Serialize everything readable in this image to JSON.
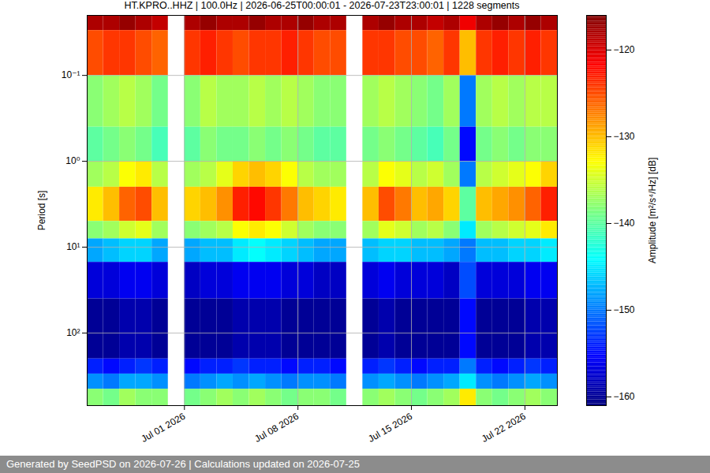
{
  "chart_data": {
    "type": "heatmap",
    "title": "HT.KPRO..HHZ | 100.0Hz | 2026-06-25T00:00:01 - 2026-07-23T23:00:01 | 1228 segments",
    "y_label": "Period [s]",
    "log": "y",
    "grid": true,
    "footer": "Generated by SeedPSD on 2026-07-26 | Calculations updated on 2026-07-25",
    "xlim": [
      "2026-06-25",
      "2026-07-24"
    ],
    "xticks": [
      {
        "value": "2026-07-01",
        "label": "Jul 01 2026"
      },
      {
        "value": "2026-07-08",
        "label": "Jul 08 2026"
      },
      {
        "value": "2026-07-15",
        "label": "Jul 15 2026"
      },
      {
        "value": "2026-07-22",
        "label": "Jul 22 2026"
      }
    ],
    "ylim": [
      0.02,
      700
    ],
    "yticks": [
      {
        "value": 0.1,
        "label": "10⁻¹"
      },
      {
        "value": 1,
        "label": "10⁰"
      },
      {
        "value": 10,
        "label": "10¹"
      },
      {
        "value": 100,
        "label": "10²"
      }
    ],
    "time_edges": [
      "2026-06-25",
      "2026-06-26",
      "2026-06-27",
      "2026-06-28",
      "2026-06-29",
      "2026-06-30",
      "2026-07-01",
      "2026-07-02",
      "2026-07-03",
      "2026-07-04",
      "2026-07-05",
      "2026-07-06",
      "2026-07-07",
      "2026-07-08",
      "2026-07-09",
      "2026-07-10",
      "2026-07-11",
      "2026-07-12",
      "2026-07-13",
      "2026-07-14",
      "2026-07-15",
      "2026-07-16",
      "2026-07-17",
      "2026-07-18",
      "2026-07-19",
      "2026-07-20",
      "2026-07-21",
      "2026-07-22",
      "2026-07-23",
      "2026-07-24"
    ],
    "period_edges": [
      0.02,
      0.03,
      0.1,
      0.4,
      1,
      2,
      5,
      8,
      15,
      40,
      200,
      300,
      450,
      700
    ],
    "cells": [
      [
        -118,
        -118,
        -117,
        -118,
        -119,
        null,
        -118,
        -117,
        -118,
        -118,
        -117,
        -118,
        -118,
        -117,
        -118,
        -118,
        null,
        -118,
        -117,
        -118,
        -118,
        -119,
        -118,
        -121,
        -118,
        -117,
        -118,
        -117,
        -118
      ],
      [
        -125,
        -124,
        -124,
        -125,
        -126,
        null,
        -124,
        -123,
        -124,
        -125,
        -124,
        -124,
        -123,
        -124,
        -125,
        -125,
        null,
        -124,
        -124,
        -125,
        -125,
        -126,
        -124,
        -130,
        -124,
        -123,
        -124,
        -123,
        -124
      ],
      [
        -138,
        -137,
        -136,
        -137,
        -139,
        null,
        -138,
        -136,
        -137,
        -137,
        -136,
        -137,
        -136,
        -137,
        -138,
        -138,
        null,
        -137,
        -136,
        -137,
        -138,
        -139,
        -137,
        -150,
        -137,
        -136,
        -137,
        -136,
        -136
      ],
      [
        -140,
        -139,
        -138,
        -139,
        -141,
        null,
        -140,
        -138,
        -139,
        -139,
        -138,
        -139,
        -138,
        -139,
        -140,
        -140,
        null,
        -139,
        -138,
        -139,
        -140,
        -141,
        -139,
        -155,
        -139,
        -138,
        -139,
        -138,
        -138
      ],
      [
        -137,
        -136,
        -133,
        -132,
        -136,
        null,
        -137,
        -136,
        -134,
        -131,
        -130,
        -131,
        -133,
        -136,
        -137,
        -137,
        null,
        -136,
        -133,
        -134,
        -136,
        -135,
        -137,
        -150,
        -136,
        -135,
        -134,
        -133,
        -131
      ],
      [
        -132,
        -130,
        -126,
        -125,
        -130,
        null,
        -131,
        -130,
        -128,
        -123,
        -122,
        -124,
        -127,
        -130,
        -131,
        -132,
        null,
        -130,
        -125,
        -127,
        -130,
        -129,
        -131,
        -140,
        -130,
        -129,
        -128,
        -126,
        -123
      ],
      [
        -138,
        -137,
        -135,
        -134,
        -137,
        null,
        -138,
        -137,
        -136,
        -133,
        -132,
        -133,
        -135,
        -137,
        -138,
        -138,
        null,
        -137,
        -134,
        -135,
        -137,
        -136,
        -138,
        -145,
        -137,
        -136,
        -135,
        -134,
        -132
      ],
      [
        -148,
        -147,
        -146,
        -146,
        -148,
        null,
        -148,
        -147,
        -147,
        -145,
        -144,
        -145,
        -146,
        -147,
        -148,
        -148,
        null,
        -147,
        -146,
        -146,
        -147,
        -147,
        -148,
        -150,
        -147,
        -147,
        -146,
        -146,
        -145
      ],
      [
        -157,
        -157,
        -156,
        -156,
        -157,
        null,
        -158,
        -157,
        -157,
        -156,
        -156,
        -156,
        -157,
        -157,
        -158,
        -158,
        null,
        -157,
        -156,
        -157,
        -157,
        -157,
        -158,
        -152,
        -157,
        -157,
        -157,
        -156,
        -156
      ],
      [
        -160,
        -160,
        -159,
        -159,
        -160,
        null,
        -160,
        -160,
        -160,
        -159,
        -159,
        -159,
        -160,
        -160,
        -160,
        -160,
        null,
        -160,
        -159,
        -160,
        -160,
        -160,
        -160,
        -155,
        -160,
        -160,
        -160,
        -159,
        -159
      ],
      [
        -154,
        -155,
        -154,
        -153,
        -154,
        null,
        -155,
        -154,
        -154,
        -153,
        -154,
        -154,
        -155,
        -154,
        -154,
        -155,
        null,
        -154,
        -153,
        -154,
        -155,
        -154,
        -154,
        -150,
        -154,
        -155,
        -154,
        -153,
        -154
      ],
      [
        -149,
        -150,
        -148,
        -148,
        -149,
        null,
        -150,
        -149,
        -148,
        -149,
        -148,
        -149,
        -150,
        -149,
        -149,
        -150,
        null,
        -149,
        -148,
        -149,
        -150,
        -149,
        -148,
        -145,
        -149,
        -150,
        -149,
        -148,
        -149
      ],
      [
        -138,
        -139,
        -137,
        -138,
        -138,
        null,
        -139,
        -138,
        -137,
        -138,
        -137,
        -138,
        -139,
        -138,
        -138,
        -139,
        null,
        -138,
        -137,
        -138,
        -139,
        -138,
        -137,
        -132,
        -138,
        -139,
        -138,
        -137,
        -138
      ]
    ],
    "colorbar": {
      "label": "Amplitude [m²/s⁴/Hz] [dB]",
      "range": [
        -161,
        -116
      ],
      "ticks": [
        -160,
        -150,
        -140,
        -130,
        -120
      ]
    }
  }
}
